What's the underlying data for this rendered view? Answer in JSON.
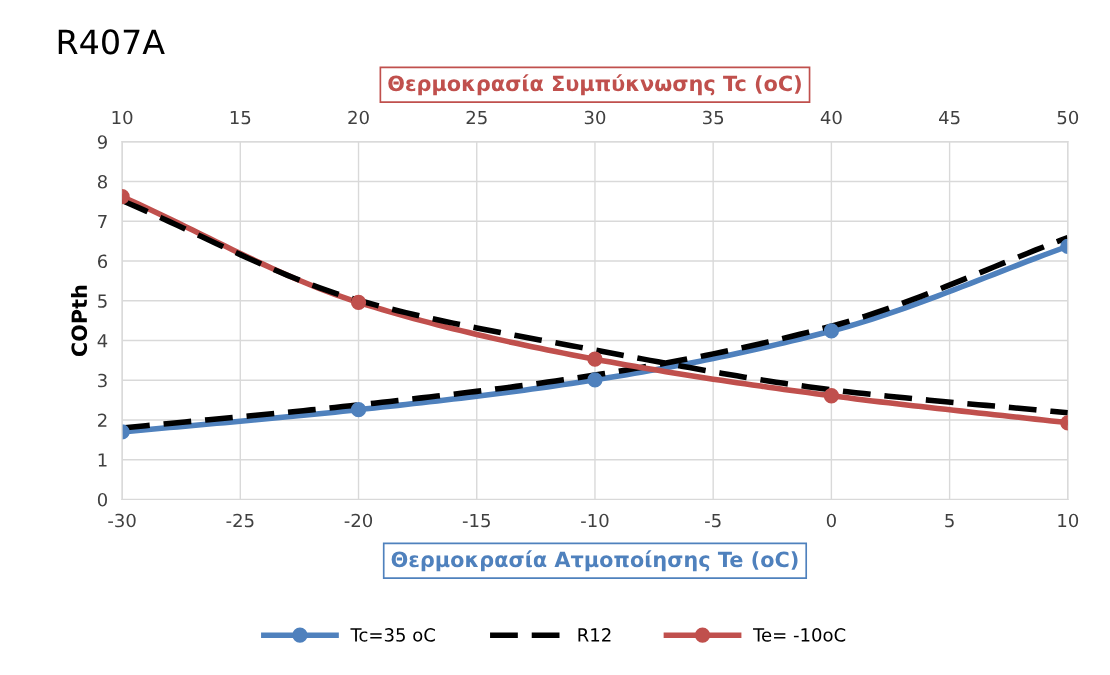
{
  "chart_data": {
    "type": "line",
    "title": "R407A",
    "xlabel": "Θερμοκρασία Ατμοποίησης Te (oC)",
    "x2label": "Θερμοκρασία Συμπύκνωσης Tc (oC)",
    "ylabel": "COPth",
    "xlim": [
      -30,
      10
    ],
    "xticks": [
      -30,
      -25,
      -20,
      -15,
      -10,
      -5,
      0,
      5,
      10
    ],
    "x2lim": [
      10,
      50
    ],
    "x2ticks": [
      10,
      15,
      20,
      25,
      30,
      35,
      40,
      45,
      50
    ],
    "ylim": [
      0,
      9
    ],
    "yticks": [
      0,
      1,
      2,
      3,
      4,
      5,
      6,
      7,
      8,
      9
    ],
    "grid": true,
    "legend": "bottom",
    "series": [
      {
        "name": "Tc=35 oC",
        "color": "#4f81bd",
        "x": [
          -30,
          -20,
          -10,
          0,
          10
        ],
        "values": [
          1.7,
          2.26,
          3.01,
          4.24,
          6.37
        ],
        "marker": "circle",
        "line_style": "solid"
      },
      {
        "name": "R12",
        "color": "#000000",
        "x": [
          -30,
          -20,
          -10,
          0,
          10
        ],
        "values": [
          1.8,
          2.38,
          3.13,
          4.36,
          6.59
        ],
        "marker": "none",
        "line_style": "dashed"
      },
      {
        "name": "Te= -10oC",
        "color": "#c0504d",
        "axis": "x2",
        "x": [
          10,
          20,
          30,
          40,
          50
        ],
        "values": [
          7.62,
          4.96,
          3.53,
          2.61,
          1.93
        ],
        "marker": "circle",
        "line_style": "solid"
      },
      {
        "color": "#000000",
        "axis": "x2",
        "x": [
          10,
          20,
          30,
          40,
          50
        ],
        "values": [
          7.52,
          5.01,
          3.76,
          2.76,
          2.18
        ],
        "marker": "none",
        "line_style": "dashed"
      }
    ]
  }
}
